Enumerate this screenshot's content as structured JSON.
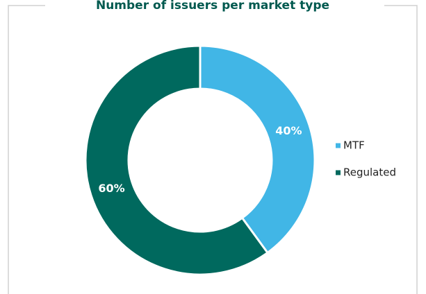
{
  "chart_data": {
    "type": "donut",
    "title": "Number of issuers per market type",
    "categories": [
      "MTF",
      "Regulated"
    ],
    "values": [
      40,
      60
    ],
    "value_labels": [
      "40%",
      "60%"
    ],
    "colors": [
      "#41b6e6",
      "#00695e"
    ],
    "legend": "right"
  }
}
